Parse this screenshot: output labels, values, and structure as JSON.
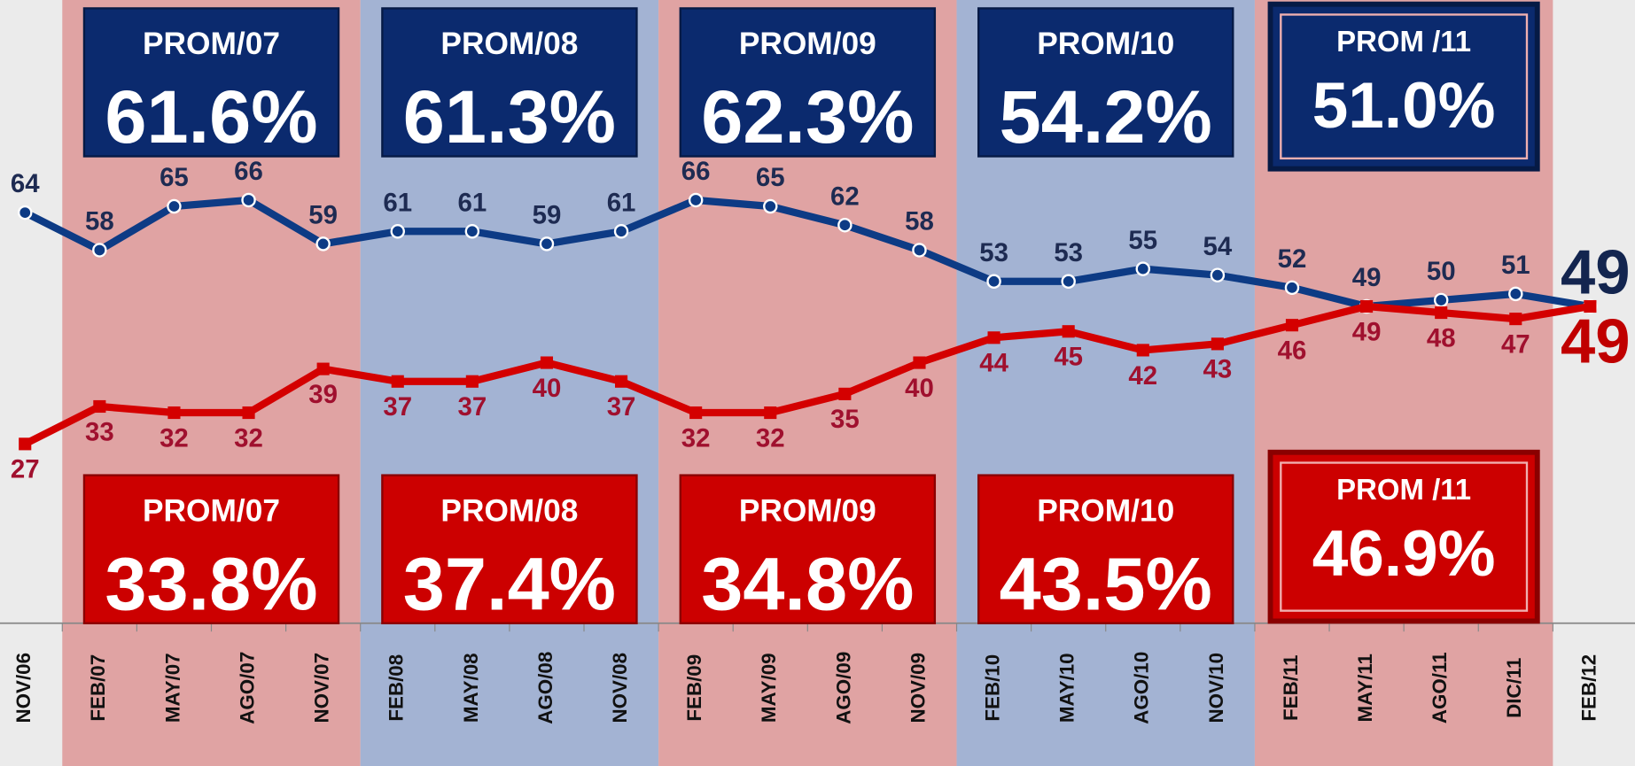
{
  "chart_data": {
    "type": "line",
    "categories": [
      "NOV/06",
      "FEB/07",
      "MAY/07",
      "AGO/07",
      "NOV/07",
      "FEB/08",
      "MAY/08",
      "AGO/08",
      "NOV/08",
      "FEB/09",
      "MAY/09",
      "AGO/09",
      "NOV/09",
      "FEB/10",
      "MAY/10",
      "AGO/10",
      "NOV/10",
      "FEB/11",
      "MAY/11",
      "AGO/11",
      "DIC/11",
      "FEB/12"
    ],
    "series": [
      {
        "color": "#0d3b85",
        "values": [
          64,
          58,
          65,
          66,
          59,
          61,
          61,
          59,
          61,
          66,
          65,
          62,
          58,
          53,
          53,
          55,
          54,
          52,
          49,
          50,
          51,
          49
        ]
      },
      {
        "color": "#d40000",
        "values": [
          27,
          33,
          32,
          32,
          39,
          37,
          37,
          40,
          37,
          32,
          32,
          35,
          40,
          44,
          45,
          42,
          43,
          46,
          49,
          48,
          47,
          49
        ]
      }
    ],
    "ylim": [
      -2,
      98
    ],
    "averages": [
      {
        "color": "#0b2a6e",
        "labels": [
          "PROM/07",
          "PROM/08",
          "PROM/09",
          "PROM/10",
          "PROM /11"
        ],
        "values": [
          61.6,
          61.3,
          62.3,
          54.2,
          51.0
        ],
        "value_labels": [
          "61.6%",
          "61.3%",
          "62.3%",
          "54.2%",
          "51.0%"
        ]
      },
      {
        "color": "#cc0000",
        "labels": [
          "PROM/07",
          "PROM/08",
          "PROM/09",
          "PROM/10",
          "PROM /11"
        ],
        "values": [
          33.8,
          37.4,
          34.8,
          43.5,
          46.9
        ],
        "value_labels": [
          "33.8%",
          "37.4%",
          "34.8%",
          "43.5%",
          "46.9%"
        ]
      }
    ]
  }
}
